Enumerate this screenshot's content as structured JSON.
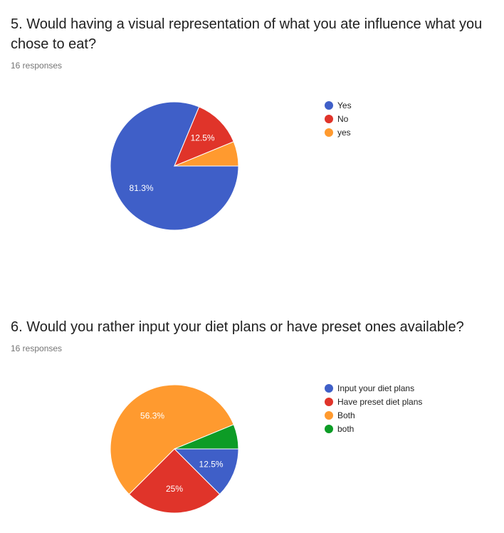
{
  "chart_data": [
    {
      "type": "pie",
      "title": "5. Would having a visual representation of what you ate influence what you chose to eat?",
      "subtitle": "16 responses",
      "categories": [
        "Yes",
        "No",
        "yes"
      ],
      "values": [
        81.3,
        12.5,
        6.2
      ],
      "colors": [
        "#3F5FC8",
        "#E0342A",
        "#FF9A2F"
      ],
      "data_labels": [
        "81.3%",
        "12.5%",
        ""
      ],
      "legend_position": "right"
    },
    {
      "type": "pie",
      "title": "6. Would you rather input your diet plans or have preset ones available?",
      "subtitle": "16 responses",
      "categories": [
        "Input your diet plans",
        "Have preset diet plans",
        "Both",
        "both"
      ],
      "values": [
        12.5,
        25,
        56.3,
        6.2
      ],
      "colors": [
        "#3F5FC8",
        "#E0342A",
        "#FF9A2F",
        "#0D9C26"
      ],
      "data_labels": [
        "12.5%",
        "25%",
        "56.3%",
        ""
      ],
      "legend_position": "right"
    }
  ]
}
